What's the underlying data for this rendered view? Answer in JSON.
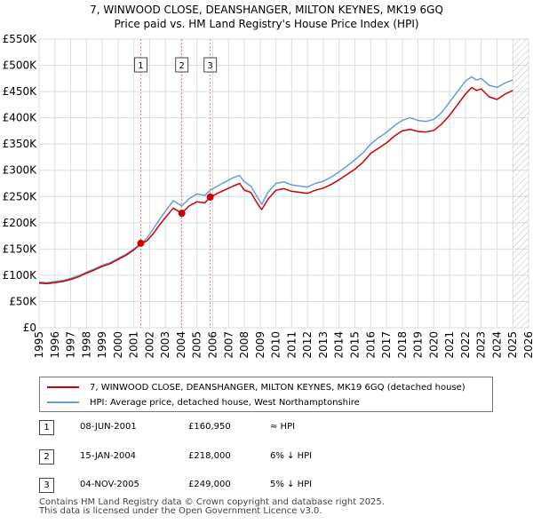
{
  "title": "7, WINWOOD CLOSE, DEANSHANGER, MILTON KEYNES, MK19 6GQ",
  "subtitle": "Price paid vs. HM Land Registry's House Price Index (HPI)",
  "colors": {
    "property": "#cc0000",
    "hpi": "#6b9bd2",
    "grid": "#dddddd",
    "marker_line": "#e08080",
    "hatch": "#aaaaaa"
  },
  "legend": {
    "property_label": "7, WINWOOD CLOSE, DEANSHANGER, MILTON KEYNES, MK19 6GQ (detached house)",
    "hpi_label": "HPI: Average price, detached house, West Northamptonshire"
  },
  "sales": [
    {
      "num": "1",
      "date": "08-JUN-2001",
      "price": "£160,950",
      "relation": "≈ HPI"
    },
    {
      "num": "2",
      "date": "15-JAN-2004",
      "price": "£218,000",
      "relation": "6% ↓ HPI"
    },
    {
      "num": "3",
      "date": "04-NOV-2005",
      "price": "£249,000",
      "relation": "5% ↓ HPI"
    }
  ],
  "footer": {
    "line1": "Contains HM Land Registry data © Crown copyright and database right 2025.",
    "line2": "This data is licensed under the Open Government Licence v3.0."
  },
  "chart_data": {
    "type": "line",
    "xlim": [
      1995,
      2026
    ],
    "ylim": [
      0,
      550000
    ],
    "x_ticks": [
      "1995",
      "1996",
      "1997",
      "1998",
      "1999",
      "2000",
      "2001",
      "2002",
      "2003",
      "2004",
      "2005",
      "2006",
      "2007",
      "2008",
      "2009",
      "2010",
      "2011",
      "2012",
      "2013",
      "2014",
      "2015",
      "2016",
      "2017",
      "2018",
      "2019",
      "2020",
      "2021",
      "2022",
      "2023",
      "2024",
      "2025",
      "2026"
    ],
    "y_ticks": [
      {
        "value": 0,
        "label": "£0"
      },
      {
        "value": 50000,
        "label": "£50K"
      },
      {
        "value": 100000,
        "label": "£100K"
      },
      {
        "value": 150000,
        "label": "£150K"
      },
      {
        "value": 200000,
        "label": "£200K"
      },
      {
        "value": 250000,
        "label": "£250K"
      },
      {
        "value": 300000,
        "label": "£300K"
      },
      {
        "value": 350000,
        "label": "£350K"
      },
      {
        "value": 400000,
        "label": "£400K"
      },
      {
        "value": 450000,
        "label": "£450K"
      },
      {
        "value": 500000,
        "label": "£500K"
      },
      {
        "value": 550000,
        "label": "£550K"
      }
    ],
    "grid": true,
    "future_hatch_from": 2025.0,
    "sale_markers": [
      {
        "label": "1",
        "x": 2001.44,
        "y": 160950
      },
      {
        "label": "2",
        "x": 2004.04,
        "y": 218000
      },
      {
        "label": "3",
        "x": 2005.84,
        "y": 249000
      }
    ],
    "series": [
      {
        "name": "7, WINWOOD CLOSE, DEANSHANGER, MILTON KEYNES, MK19 6GQ (detached house)",
        "x": [
          1995,
          1995.5,
          1996,
          1996.5,
          1997,
          1997.5,
          1998,
          1998.5,
          1999,
          1999.5,
          2000,
          2000.5,
          2001,
          2001.44,
          2001.8,
          2002.2,
          2002.6,
          2003,
          2003.5,
          2004.04,
          2004.5,
          2005,
          2005.5,
          2005.84,
          2006.3,
          2006.8,
          2007.3,
          2007.7,
          2008,
          2008.4,
          2008.8,
          2009.1,
          2009.5,
          2010,
          2010.5,
          2011,
          2011.5,
          2012,
          2012.5,
          2013,
          2013.5,
          2014,
          2014.5,
          2015,
          2015.5,
          2016,
          2016.5,
          2017,
          2017.5,
          2018,
          2018.5,
          2019,
          2019.5,
          2020,
          2020.5,
          2021,
          2021.5,
          2022,
          2022.4,
          2022.7,
          2023,
          2023.5,
          2024,
          2024.5,
          2025
        ],
        "y": [
          85000,
          84000,
          86000,
          88000,
          92000,
          97000,
          104000,
          110000,
          117000,
          122000,
          130000,
          138000,
          148000,
          160950,
          165000,
          178000,
          195000,
          210000,
          228000,
          218000,
          232000,
          240000,
          238000,
          249000,
          256000,
          263000,
          270000,
          275000,
          262000,
          258000,
          238000,
          225000,
          245000,
          262000,
          265000,
          260000,
          258000,
          256000,
          262000,
          266000,
          273000,
          282000,
          292000,
          302000,
          315000,
          332000,
          342000,
          352000,
          365000,
          375000,
          378000,
          374000,
          373000,
          376000,
          388000,
          405000,
          425000,
          445000,
          458000,
          452000,
          455000,
          440000,
          435000,
          445000,
          452000
        ]
      },
      {
        "name": "HPI: Average price, detached house, West Northamptonshire",
        "x": [
          1995,
          1995.5,
          1996,
          1996.5,
          1997,
          1997.5,
          1998,
          1998.5,
          1999,
          1999.5,
          2000,
          2000.5,
          2001,
          2001.44,
          2001.8,
          2002.2,
          2002.6,
          2003,
          2003.5,
          2004.04,
          2004.5,
          2005,
          2005.5,
          2005.84,
          2006.3,
          2006.8,
          2007.3,
          2007.7,
          2008,
          2008.4,
          2008.8,
          2009.1,
          2009.5,
          2010,
          2010.5,
          2011,
          2011.5,
          2012,
          2012.5,
          2013,
          2013.5,
          2014,
          2014.5,
          2015,
          2015.5,
          2016,
          2016.5,
          2017,
          2017.5,
          2018,
          2018.5,
          2019,
          2019.5,
          2020,
          2020.5,
          2021,
          2021.5,
          2022,
          2022.4,
          2022.7,
          2023,
          2023.5,
          2024,
          2024.5,
          2025
        ],
        "y": [
          87000,
          86000,
          88000,
          90000,
          94000,
          99000,
          106000,
          112000,
          119000,
          124000,
          132000,
          140000,
          150000,
          158000,
          170000,
          187000,
          205000,
          222000,
          242000,
          232000,
          246000,
          255000,
          252000,
          262000,
          270000,
          278000,
          286000,
          290000,
          278000,
          270000,
          250000,
          235000,
          258000,
          275000,
          278000,
          272000,
          270000,
          268000,
          275000,
          279000,
          287000,
          297000,
          308000,
          320000,
          333000,
          350000,
          362000,
          372000,
          385000,
          395000,
          400000,
          395000,
          393000,
          397000,
          410000,
          430000,
          450000,
          470000,
          478000,
          472000,
          475000,
          462000,
          458000,
          466000,
          472000
        ]
      }
    ]
  }
}
